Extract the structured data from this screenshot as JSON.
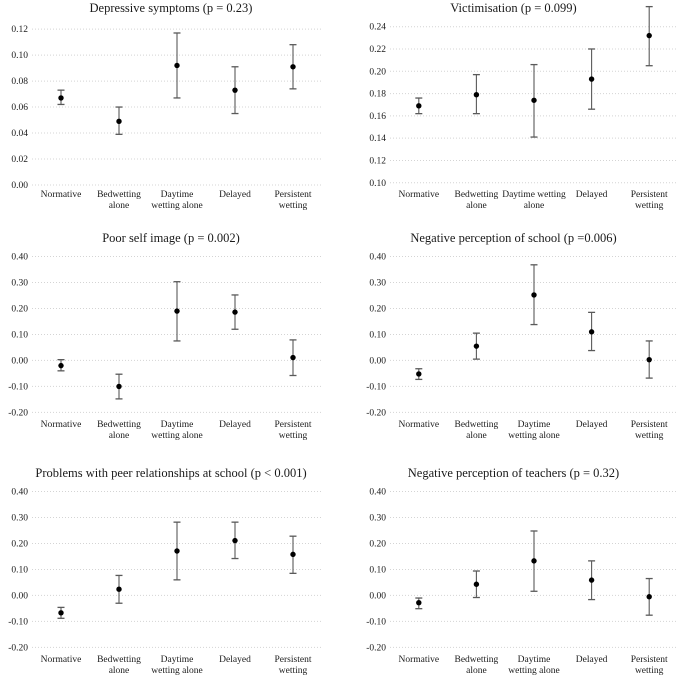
{
  "figure": {
    "background": "#ffffff",
    "layout": "2x3 grid of point-estimate plots with 95% confidence interval error bars",
    "colors": {
      "marker": "#000000",
      "error_bar": "#5a5a5a",
      "gridline": "#d4d4d4",
      "text": "#1a1a1a"
    },
    "marker_shape": "filled-circle"
  },
  "chart_data": [
    {
      "type": "scatter",
      "title": "Depressive symptoms (p = 0.23)",
      "xlabel": "",
      "ylabel": "",
      "grid": "dotted-horizontal",
      "legend": "none",
      "yticks": [
        0.12,
        0.1,
        0.08,
        0.06,
        0.04,
        0.02,
        0.0
      ],
      "tick_decimals": 2,
      "ylim": [
        0.0,
        0.127
      ],
      "points": [
        {
          "category_lines": [
            "Normative"
          ],
          "value": 0.067,
          "ci_low": 0.062,
          "ci_high": 0.073
        },
        {
          "category_lines": [
            "Bedwetting",
            "alone"
          ],
          "value": 0.049,
          "ci_low": 0.039,
          "ci_high": 0.06
        },
        {
          "category_lines": [
            "Daytime",
            "wetting alone"
          ],
          "value": 0.092,
          "ci_low": 0.067,
          "ci_high": 0.117
        },
        {
          "category_lines": [
            "Delayed"
          ],
          "value": 0.073,
          "ci_low": 0.055,
          "ci_high": 0.091
        },
        {
          "category_lines": [
            "Persistent",
            "wetting"
          ],
          "value": 0.091,
          "ci_low": 0.074,
          "ci_high": 0.108
        }
      ]
    },
    {
      "type": "scatter",
      "title": "Victimisation (p = 0.099)",
      "xlabel": "",
      "ylabel": "",
      "grid": "dotted-horizontal",
      "legend": "none",
      "yticks": [
        0.24,
        0.22,
        0.2,
        0.18,
        0.16,
        0.14,
        0.12,
        0.1
      ],
      "tick_decimals": 2,
      "ylim": [
        0.098,
        0.246
      ],
      "points": [
        {
          "category_lines": [
            "Normative"
          ],
          "value": 0.169,
          "ci_low": 0.162,
          "ci_high": 0.176
        },
        {
          "category_lines": [
            "Bedwetting",
            "alone"
          ],
          "value": 0.179,
          "ci_low": 0.162,
          "ci_high": 0.197
        },
        {
          "category_lines": [
            "Daytime wetting",
            "alone"
          ],
          "value": 0.174,
          "ci_low": 0.141,
          "ci_high": 0.206
        },
        {
          "category_lines": [
            "Delayed"
          ],
          "value": 0.193,
          "ci_low": 0.166,
          "ci_high": 0.22
        },
        {
          "category_lines": [
            "Persistent",
            "wetting"
          ],
          "value": 0.232,
          "ci_low": 0.205,
          "ci_high": 0.258
        }
      ]
    },
    {
      "type": "scatter",
      "title": "Poor self image (p = 0.002)",
      "xlabel": "",
      "ylabel": "",
      "grid": "dotted-horizontal",
      "legend": "none",
      "yticks": [
        0.4,
        0.3,
        0.2,
        0.1,
        0.0,
        -0.1,
        -0.2
      ],
      "tick_decimals": 2,
      "ylim": [
        -0.21,
        0.425
      ],
      "points": [
        {
          "category_lines": [
            "Normative"
          ],
          "value": -0.02,
          "ci_low": -0.04,
          "ci_high": 0.003
        },
        {
          "category_lines": [
            "Bedwetting",
            "alone"
          ],
          "value": -0.1,
          "ci_low": -0.148,
          "ci_high": -0.053
        },
        {
          "category_lines": [
            "Daytime",
            "wetting alone"
          ],
          "value": 0.19,
          "ci_low": 0.075,
          "ci_high": 0.303
        },
        {
          "category_lines": [
            "Delayed"
          ],
          "value": 0.186,
          "ci_low": 0.12,
          "ci_high": 0.252
        },
        {
          "category_lines": [
            "Persistent",
            "wetting"
          ],
          "value": 0.011,
          "ci_low": -0.058,
          "ci_high": 0.079
        }
      ]
    },
    {
      "type": "scatter",
      "title": "Negative perception of school (p =0.006)",
      "xlabel": "",
      "ylabel": "",
      "grid": "dotted-horizontal",
      "legend": "none",
      "yticks": [
        0.4,
        0.3,
        0.2,
        0.1,
        0.0,
        -0.1,
        -0.2
      ],
      "tick_decimals": 2,
      "ylim": [
        -0.21,
        0.425
      ],
      "points": [
        {
          "category_lines": [
            "Normative"
          ],
          "value": -0.052,
          "ci_low": -0.073,
          "ci_high": -0.032
        },
        {
          "category_lines": [
            "Bedwetting",
            "alone"
          ],
          "value": 0.055,
          "ci_low": 0.005,
          "ci_high": 0.105
        },
        {
          "category_lines": [
            "Daytime",
            "wetting alone"
          ],
          "value": 0.252,
          "ci_low": 0.138,
          "ci_high": 0.368
        },
        {
          "category_lines": [
            "Delayed"
          ],
          "value": 0.11,
          "ci_low": 0.038,
          "ci_high": 0.185
        },
        {
          "category_lines": [
            "Persistent",
            "wetting"
          ],
          "value": 0.003,
          "ci_low": -0.068,
          "ci_high": 0.075
        }
      ]
    },
    {
      "type": "scatter",
      "title": "Problems with peer relationships at school (p < 0.001)",
      "xlabel": "",
      "ylabel": "",
      "grid": "dotted-horizontal",
      "legend": "none",
      "yticks": [
        0.4,
        0.3,
        0.2,
        0.1,
        0.0,
        -0.1,
        -0.2
      ],
      "tick_decimals": 2,
      "ylim": [
        -0.21,
        0.425
      ],
      "points": [
        {
          "category_lines": [
            "Normative"
          ],
          "value": -0.067,
          "ci_low": -0.088,
          "ci_high": -0.046
        },
        {
          "category_lines": [
            "Bedwetting",
            "alone"
          ],
          "value": 0.024,
          "ci_low": -0.03,
          "ci_high": 0.077
        },
        {
          "category_lines": [
            "Daytime",
            "wetting alone"
          ],
          "value": 0.171,
          "ci_low": 0.06,
          "ci_high": 0.282
        },
        {
          "category_lines": [
            "Delayed"
          ],
          "value": 0.211,
          "ci_low": 0.142,
          "ci_high": 0.282
        },
        {
          "category_lines": [
            "Persistent",
            "wetting"
          ],
          "value": 0.158,
          "ci_low": 0.085,
          "ci_high": 0.228
        }
      ]
    },
    {
      "type": "scatter",
      "title": "Negative perception of teachers (p = 0.32)",
      "xlabel": "",
      "ylabel": "",
      "grid": "dotted-horizontal",
      "legend": "none",
      "yticks": [
        0.4,
        0.3,
        0.2,
        0.1,
        0.0,
        -0.1,
        -0.2
      ],
      "tick_decimals": 2,
      "ylim": [
        -0.21,
        0.425
      ],
      "points": [
        {
          "category_lines": [
            "Normative"
          ],
          "value": -0.028,
          "ci_low": -0.051,
          "ci_high": -0.01
        },
        {
          "category_lines": [
            "Bedwetting",
            "alone"
          ],
          "value": 0.043,
          "ci_low": -0.008,
          "ci_high": 0.094
        },
        {
          "category_lines": [
            "Daytime",
            "wetting alone"
          ],
          "value": 0.133,
          "ci_low": 0.016,
          "ci_high": 0.248
        },
        {
          "category_lines": [
            "Delayed"
          ],
          "value": 0.059,
          "ci_low": -0.016,
          "ci_high": 0.133
        },
        {
          "category_lines": [
            "Persistent",
            "wetting"
          ],
          "value": -0.005,
          "ci_low": -0.076,
          "ci_high": 0.065
        }
      ]
    }
  ]
}
